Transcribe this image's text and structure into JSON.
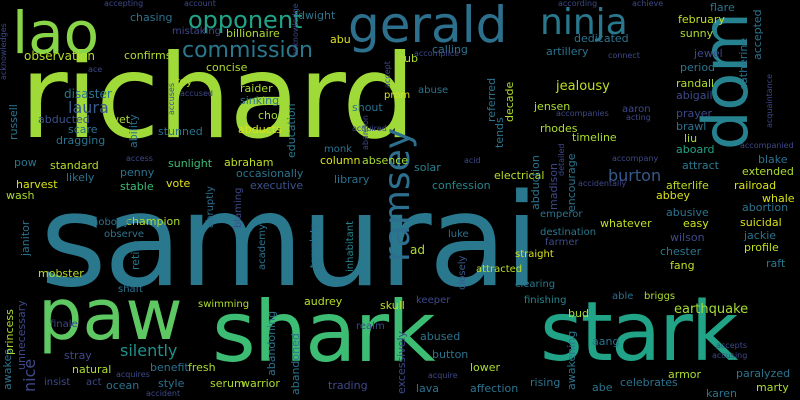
{
  "words": [
    {
      "text": "samurai",
      "color": "#2a788e"
    },
    {
      "text": "richard",
      "color": "#a0da39"
    },
    {
      "text": "shark",
      "color": "#3dbc74"
    },
    {
      "text": "stark",
      "color": "#20a386"
    },
    {
      "text": "paw",
      "color": "#5ec962"
    },
    {
      "text": "gerald",
      "color": "#2d708e"
    },
    {
      "text": "lao",
      "color": "#89d548"
    },
    {
      "text": "dom",
      "color": "#26828e"
    },
    {
      "text": "ninja",
      "color": "#2a788e"
    },
    {
      "text": "ramsey",
      "color": "#2d6f8e"
    },
    {
      "text": "opponent",
      "color": "#20a386"
    },
    {
      "text": "commission",
      "color": "#2a778e"
    },
    {
      "text": "laura",
      "color": "#38598c"
    },
    {
      "text": "silently",
      "color": "#20928c"
    },
    {
      "text": "burton",
      "color": "#38598c"
    },
    {
      "text": "earthquake",
      "color": "#a5db36"
    },
    {
      "text": "jealousy",
      "color": "#c2df23"
    },
    {
      "text": "observation",
      "color": "#b5de2b"
    },
    {
      "text": "disaster",
      "color": "#2a778e"
    },
    {
      "text": "abducted",
      "color": "#3b528b"
    },
    {
      "text": "abducts",
      "color": "#d8e219"
    },
    {
      "text": "chose",
      "color": "#a5db36"
    },
    {
      "text": "education",
      "color": "#2a788e"
    },
    {
      "text": "abraham",
      "color": "#c2df23"
    },
    {
      "text": "sunlight",
      "color": "#3dbc74"
    },
    {
      "text": "standard",
      "color": "#b5de2b"
    },
    {
      "text": "penny",
      "color": "#2c738e"
    },
    {
      "text": "harvest",
      "color": "#d8e219"
    },
    {
      "text": "stable",
      "color": "#3bbb75"
    },
    {
      "text": "vote",
      "color": "#e2e418"
    },
    {
      "text": "executive",
      "color": "#3b528b"
    },
    {
      "text": "occasionally",
      "color": "#2c738e"
    },
    {
      "text": "library",
      "color": "#2c728e"
    },
    {
      "text": "confession",
      "color": "#25858e"
    },
    {
      "text": "electrical",
      "color": "#b5de2b"
    },
    {
      "text": "solar",
      "color": "#26828e"
    },
    {
      "text": "column",
      "color": "#d8e219"
    },
    {
      "text": "absence",
      "color": "#a5db36"
    },
    {
      "text": "champion",
      "color": "#addc30"
    },
    {
      "text": "nobody",
      "color": "#2c728e"
    },
    {
      "text": "observe",
      "color": "#2c738e"
    },
    {
      "text": "abruptly",
      "color": "#2e6e8e"
    },
    {
      "text": "blaming",
      "color": "#3e4989"
    },
    {
      "text": "academy",
      "color": "#2c738e"
    },
    {
      "text": "inhabitant",
      "color": "#25848e"
    },
    {
      "text": "template",
      "color": "#2c728e"
    },
    {
      "text": "mobster",
      "color": "#b5de2b"
    },
    {
      "text": "shaft",
      "color": "#2c738e"
    },
    {
      "text": "swimming",
      "color": "#addc30"
    },
    {
      "text": "audrey",
      "color": "#b5de2b"
    },
    {
      "text": "realm",
      "color": "#3e4989"
    },
    {
      "text": "skull",
      "color": "#bddf26"
    },
    {
      "text": "keeper",
      "color": "#3e4989"
    },
    {
      "text": "closely",
      "color": "#38598c"
    },
    {
      "text": "attracted",
      "color": "#bddf26"
    },
    {
      "text": "straight",
      "color": "#d8e219"
    },
    {
      "text": "clearing",
      "color": "#2a788e"
    },
    {
      "text": "finishing",
      "color": "#25858e"
    },
    {
      "text": "able",
      "color": "#2e6e8e"
    },
    {
      "text": "briggs",
      "color": "#addc30"
    },
    {
      "text": "whatever",
      "color": "#c2df23"
    },
    {
      "text": "emperor",
      "color": "#2c728e"
    },
    {
      "text": "farmer",
      "color": "#3e4989"
    },
    {
      "text": "destination",
      "color": "#2a788e"
    },
    {
      "text": "abbey",
      "color": "#d8e219"
    },
    {
      "text": "abusive",
      "color": "#2c738e"
    },
    {
      "text": "easy",
      "color": "#cde11d"
    },
    {
      "text": "wilson",
      "color": "#3e4989"
    },
    {
      "text": "chester",
      "color": "#2c738e"
    },
    {
      "text": "fang",
      "color": "#c2df23"
    },
    {
      "text": "afterlife",
      "color": "#bddf26"
    },
    {
      "text": "railroad",
      "color": "#d8e219"
    },
    {
      "text": "extended",
      "color": "#addc30"
    },
    {
      "text": "whale",
      "color": "#d8e219"
    },
    {
      "text": "abortion",
      "color": "#2c738e"
    },
    {
      "text": "suicidal",
      "color": "#d8e219"
    },
    {
      "text": "jackie",
      "color": "#2c728e"
    },
    {
      "text": "profile",
      "color": "#c2df23"
    },
    {
      "text": "raft",
      "color": "#2a788e"
    },
    {
      "text": "blake",
      "color": "#2c728e"
    },
    {
      "text": "attract",
      "color": "#2a788e"
    },
    {
      "text": "aboard",
      "color": "#20a386"
    },
    {
      "text": "brawl",
      "color": "#2c738e"
    },
    {
      "text": "liu",
      "color": "#addc30"
    },
    {
      "text": "prayer",
      "color": "#3e4989"
    },
    {
      "text": "abigail",
      "color": "#3e4989"
    },
    {
      "text": "randall",
      "color": "#addc30"
    },
    {
      "text": "period",
      "color": "#2c738e"
    },
    {
      "text": "jewel",
      "color": "#3e4989"
    },
    {
      "text": "sunny",
      "color": "#addc30"
    },
    {
      "text": "february",
      "color": "#c2df23"
    },
    {
      "text": "flare",
      "color": "#2c738e"
    },
    {
      "text": "accepted",
      "color": "#2c738e"
    },
    {
      "text": "catherine",
      "color": "#2c728e"
    },
    {
      "text": "aaron",
      "color": "#3e4989"
    },
    {
      "text": "timeline",
      "color": "#addc30"
    },
    {
      "text": "rhodes",
      "color": "#addc30"
    },
    {
      "text": "jensen",
      "color": "#addc30"
    },
    {
      "text": "decade",
      "color": "#addc30"
    },
    {
      "text": "referred",
      "color": "#2c738e"
    },
    {
      "text": "tends",
      "color": "#2c738e"
    },
    {
      "text": "abduction",
      "color": "#2c738e"
    },
    {
      "text": "encourage",
      "color": "#2c728e"
    },
    {
      "text": "madison",
      "color": "#3e4989"
    },
    {
      "text": "luke",
      "color": "#2c738e"
    },
    {
      "text": "ad",
      "color": "#addc30"
    },
    {
      "text": "abuse",
      "color": "#2c738e"
    },
    {
      "text": "prom",
      "color": "#d8e219"
    },
    {
      "text": "shout",
      "color": "#2c738e"
    },
    {
      "text": "monk",
      "color": "#2c738e"
    },
    {
      "text": "cub",
      "color": "#addc30"
    },
    {
      "text": "calling",
      "color": "#2c738e"
    },
    {
      "text": "dedicated",
      "color": "#2c738e"
    },
    {
      "text": "artillery",
      "color": "#2c738e"
    },
    {
      "text": "billionaire",
      "color": "#addc30"
    },
    {
      "text": "chasing",
      "color": "#2c738e"
    },
    {
      "text": "dwight",
      "color": "#2c738e"
    },
    {
      "text": "abu",
      "color": "#d8e219"
    },
    {
      "text": "confirms",
      "color": "#addc30"
    },
    {
      "text": "concise",
      "color": "#addc30"
    },
    {
      "text": "grey",
      "color": "#addc30"
    },
    {
      "text": "raider",
      "color": "#addc30"
    },
    {
      "text": "sinking",
      "color": "#2c738e"
    },
    {
      "text": "wet",
      "color": "#addc30"
    },
    {
      "text": "ability",
      "color": "#2c728e"
    },
    {
      "text": "scare",
      "color": "#2c738e"
    },
    {
      "text": "dragging",
      "color": "#2c738e"
    },
    {
      "text": "stunned",
      "color": "#2c738e"
    },
    {
      "text": "russell",
      "color": "#2c738e"
    },
    {
      "text": "pow",
      "color": "#2c738e"
    },
    {
      "text": "likely",
      "color": "#2c738e"
    },
    {
      "text": "janitor",
      "color": "#2c738e"
    },
    {
      "text": "wash",
      "color": "#addc30"
    },
    {
      "text": "retire",
      "color": "#2c738e"
    },
    {
      "text": "nice",
      "color": "#3e4989"
    },
    {
      "text": "awakes",
      "color": "#2c738e"
    },
    {
      "text": "princess",
      "color": "#addc30"
    },
    {
      "text": "unnecessary",
      "color": "#3e4989"
    },
    {
      "text": "stray",
      "color": "#3e4989"
    },
    {
      "text": "benefit",
      "color": "#2c738e"
    },
    {
      "text": "fresh",
      "color": "#addc30"
    },
    {
      "text": "natural",
      "color": "#addc30"
    },
    {
      "text": "style",
      "color": "#2c738e"
    },
    {
      "text": "serum",
      "color": "#addc30"
    },
    {
      "text": "warrior",
      "color": "#addc30"
    },
    {
      "text": "abandoning",
      "color": "#2c738e"
    },
    {
      "text": "abandoned",
      "color": "#2c738e"
    },
    {
      "text": "ocean",
      "color": "#2c738e"
    },
    {
      "text": "trading",
      "color": "#3e4989"
    },
    {
      "text": "lava",
      "color": "#2c738e"
    },
    {
      "text": "affection",
      "color": "#2c738e"
    },
    {
      "text": "excessively",
      "color": "#3e4989"
    },
    {
      "text": "button",
      "color": "#2c738e"
    },
    {
      "text": "lower",
      "color": "#addc30"
    },
    {
      "text": "abused",
      "color": "#2c738e"
    },
    {
      "text": "bud",
      "color": "#addc30"
    },
    {
      "text": "aang",
      "color": "#2c738e"
    },
    {
      "text": "awakening",
      "color": "#2c738e"
    },
    {
      "text": "rising",
      "color": "#2c738e"
    },
    {
      "text": "abe",
      "color": "#2c738e"
    },
    {
      "text": "celebrates",
      "color": "#2c738e"
    },
    {
      "text": "armor",
      "color": "#addc30"
    },
    {
      "text": "karen",
      "color": "#2c738e"
    },
    {
      "text": "paralyzed",
      "color": "#2c738e"
    },
    {
      "text": "marty",
      "color": "#addc30"
    },
    {
      "text": "accepting",
      "color": "#3e4989"
    },
    {
      "text": "account",
      "color": "#3e4989"
    },
    {
      "text": "according",
      "color": "#3e4989"
    },
    {
      "text": "achieve",
      "color": "#3e4989"
    },
    {
      "text": "acknowledges",
      "color": "#3e4989"
    },
    {
      "text": "acknowledge",
      "color": "#3e4989"
    },
    {
      "text": "accomplice",
      "color": "#3e4989"
    },
    {
      "text": "acquaintance",
      "color": "#3e4989"
    },
    {
      "text": "accompanied",
      "color": "#3e4989"
    },
    {
      "text": "accompanies",
      "color": "#3e4989"
    },
    {
      "text": "accompany",
      "color": "#3e4989"
    },
    {
      "text": "accidentally",
      "color": "#3e4989"
    },
    {
      "text": "accident",
      "color": "#3e4989"
    },
    {
      "text": "acquire",
      "color": "#3e4989"
    },
    {
      "text": "acquires",
      "color": "#3e4989"
    },
    {
      "text": "accusing",
      "color": "#3e4989"
    },
    {
      "text": "accepts",
      "color": "#3e4989"
    },
    {
      "text": "insist",
      "color": "#3e4989"
    },
    {
      "text": "act",
      "color": "#3e4989"
    },
    {
      "text": "finale",
      "color": "#3e4989"
    },
    {
      "text": "access",
      "color": "#3e4989"
    },
    {
      "text": "acid",
      "color": "#3e4989"
    },
    {
      "text": "acting",
      "color": "#3e4989"
    },
    {
      "text": "acquired",
      "color": "#3e4989"
    },
    {
      "text": "ace",
      "color": "#3e4989"
    },
    {
      "text": "accept",
      "color": "#3e4989"
    },
    {
      "text": "mistaking",
      "color": "#3e4989"
    },
    {
      "text": "abandon",
      "color": "#3e4989"
    },
    {
      "text": "connect",
      "color": "#3e4989"
    },
    {
      "text": "detailed",
      "color": "#3e4989"
    },
    {
      "text": "accuses",
      "color": "#3e4989"
    },
    {
      "text": "accused",
      "color": "#3e4989"
    }
  ]
}
